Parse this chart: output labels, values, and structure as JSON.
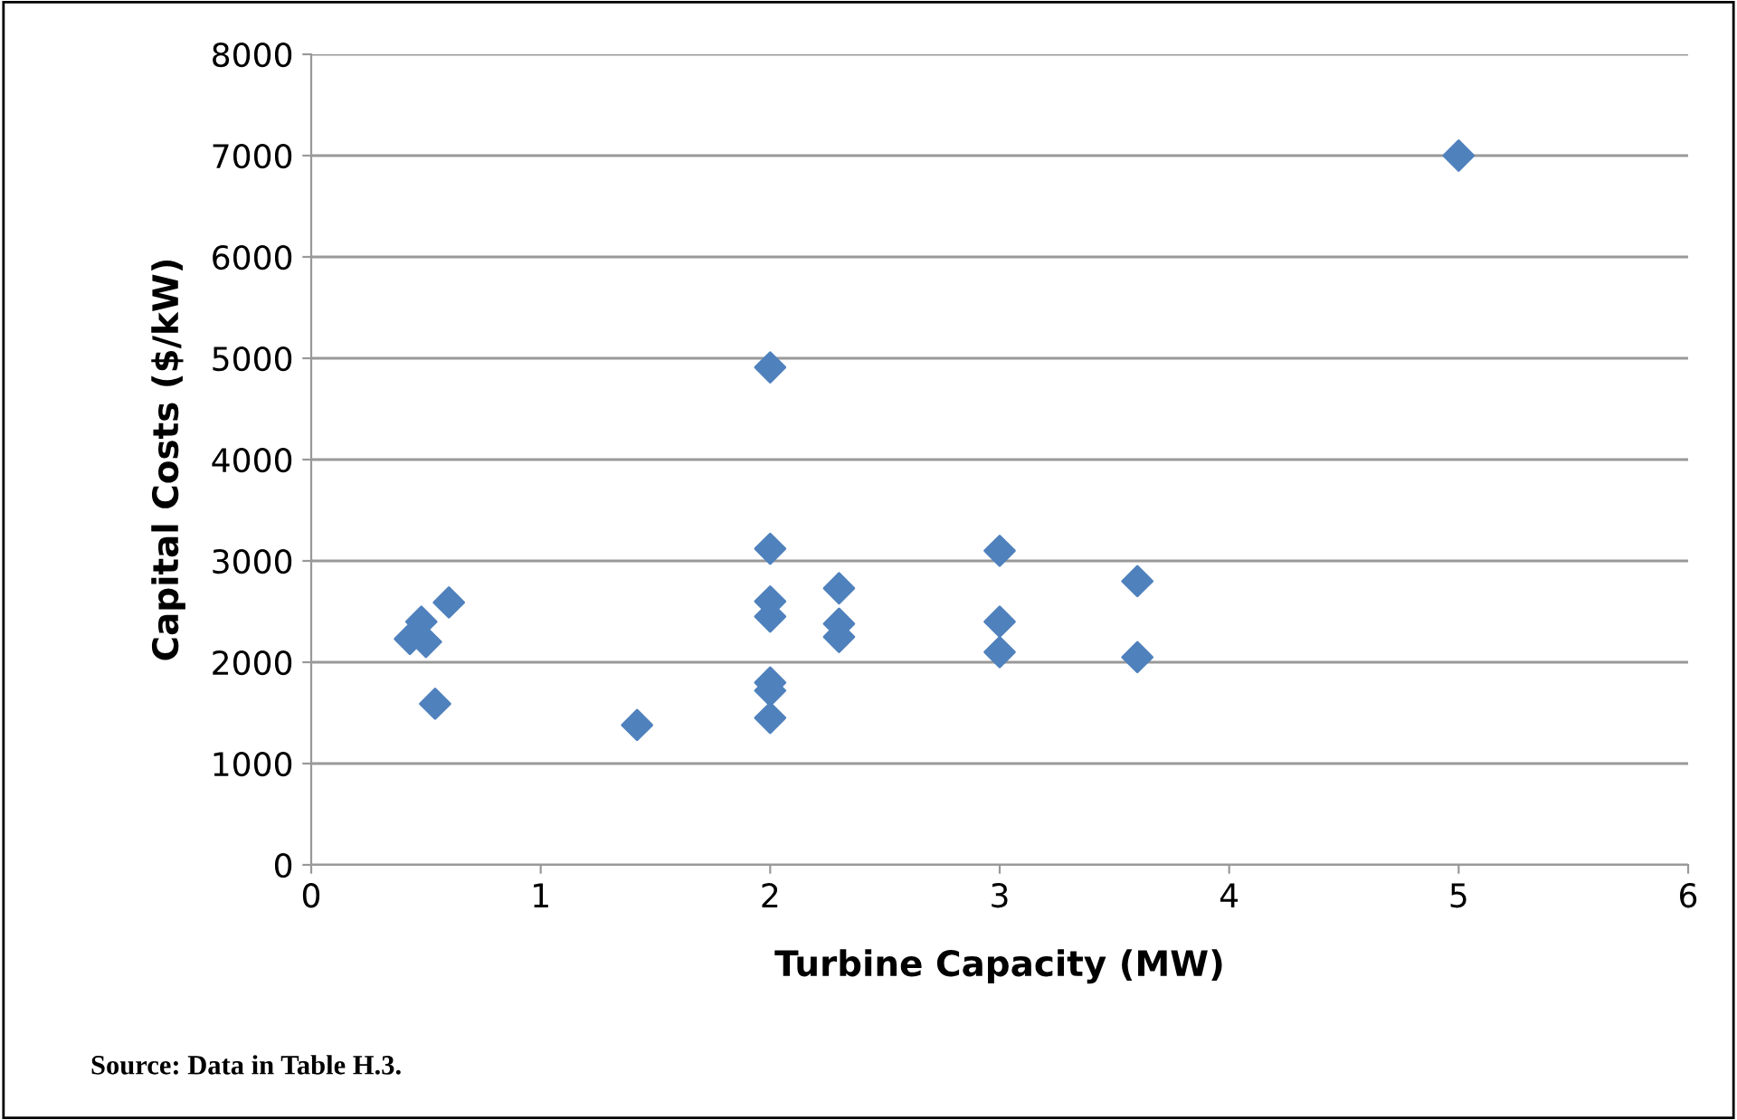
{
  "chart_data": {
    "type": "scatter",
    "xlabel": "Turbine Capacity (MW)",
    "ylabel": "Capital Costs ($/kW)",
    "annotations": [
      "Source: Data in Table H.3."
    ],
    "x": [
      0.6,
      0.48,
      0.43,
      0.5,
      0.54,
      1.42,
      2.0,
      2.0,
      2.0,
      2.0,
      2.0,
      2.0,
      2.0,
      2.3,
      2.3,
      2.3,
      3.0,
      3.0,
      3.0,
      3.6,
      3.6,
      5.0
    ],
    "series": [
      {
        "color": "#4f81bd",
        "values": [
          2590,
          2400,
          2230,
          2200,
          1590,
          1380,
          4910,
          3120,
          2600,
          2450,
          1800,
          1720,
          1450,
          2730,
          2380,
          2250,
          3100,
          2400,
          2100,
          2800,
          2050,
          7000
        ]
      }
    ],
    "marker": "diamond",
    "xlim": [
      0,
      6
    ],
    "xticks": [
      0,
      1,
      2,
      3,
      4,
      5,
      6
    ],
    "ylim": [
      0,
      8000
    ],
    "yticks": [
      0,
      1000,
      2000,
      3000,
      4000,
      5000,
      6000,
      7000,
      8000
    ],
    "grid": "y"
  }
}
